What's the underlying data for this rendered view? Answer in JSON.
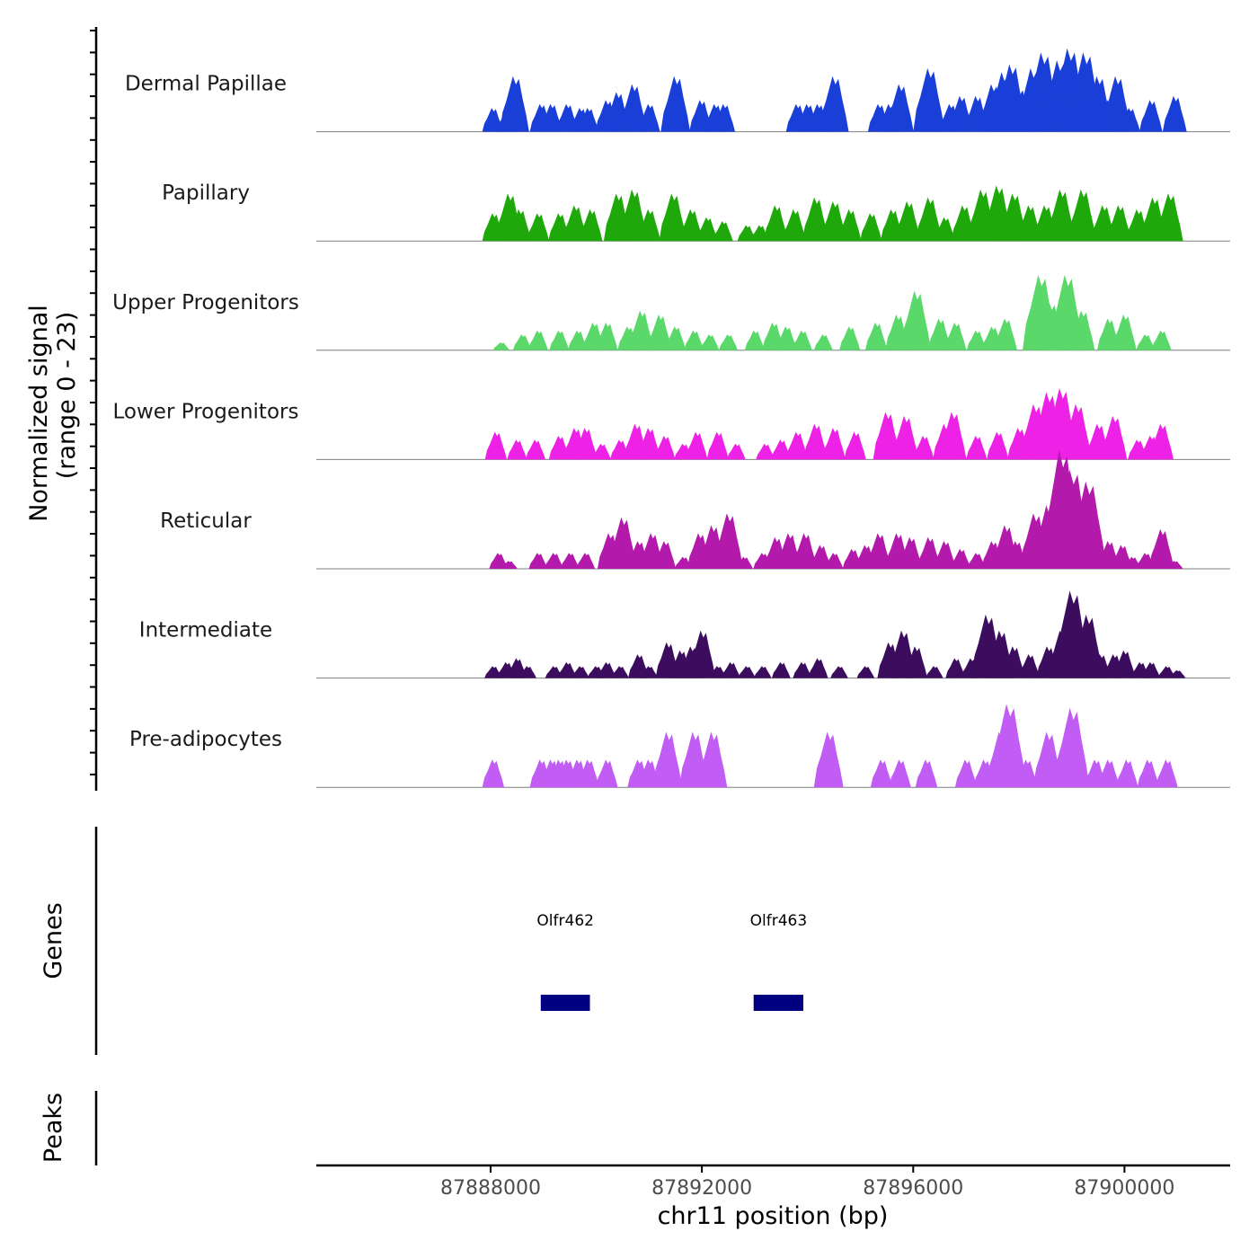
{
  "chart_data": {
    "type": "area",
    "title": "",
    "chromosome": "chr11",
    "xlabel": "chr11 position (bp)",
    "ylabel": "Normalized signal",
    "ylabel_range": "(range 0 - 23)",
    "xlim": [
      87884700,
      87902000
    ],
    "ylim": [
      0,
      23
    ],
    "x_ticks": [
      87888000,
      87892000,
      87896000,
      87900000
    ],
    "x_tick_labels": [
      "87888000",
      "87892000",
      "87896000",
      "87900000"
    ],
    "panels": {
      "genes_label": "Genes",
      "peaks_label": "Peaks"
    },
    "series": [
      {
        "name": "Dermal Papillae",
        "color": "#1a3fd9",
        "peaks": [
          [
            87888040,
            6
          ],
          [
            87888320,
            6
          ],
          [
            87888450,
            14
          ],
          [
            87888950,
            7
          ],
          [
            87889150,
            7
          ],
          [
            87889450,
            7
          ],
          [
            87889700,
            6
          ],
          [
            87889850,
            6
          ],
          [
            87890200,
            8
          ],
          [
            87890400,
            10
          ],
          [
            87890700,
            12
          ],
          [
            87891000,
            7
          ],
          [
            87891500,
            14
          ],
          [
            87891980,
            8
          ],
          [
            87892250,
            7
          ],
          [
            87892420,
            7
          ],
          [
            87893800,
            7
          ],
          [
            87894000,
            7
          ],
          [
            87894200,
            7
          ],
          [
            87894400,
            6
          ],
          [
            87894500,
            14
          ],
          [
            87895350,
            7
          ],
          [
            87895550,
            7
          ],
          [
            87895750,
            12
          ],
          [
            87896300,
            16
          ],
          [
            87896700,
            7
          ],
          [
            87896900,
            9
          ],
          [
            87896350,
            10
          ],
          [
            87897200,
            9
          ],
          [
            87897500,
            12
          ],
          [
            87897700,
            15
          ],
          [
            87897850,
            17
          ],
          [
            87898000,
            11
          ],
          [
            87898250,
            16
          ],
          [
            87898450,
            20
          ],
          [
            87898750,
            18
          ],
          [
            87898950,
            21
          ],
          [
            87899250,
            20
          ],
          [
            87899500,
            14
          ],
          [
            87899700,
            8
          ],
          [
            87899850,
            14
          ],
          [
            87900100,
            6
          ],
          [
            87900500,
            8
          ],
          [
            87900950,
            9
          ]
        ]
      },
      {
        "name": "Papillary",
        "color": "#1fa80a",
        "peaks": [
          [
            87888050,
            7
          ],
          [
            87888350,
            12
          ],
          [
            87888550,
            8
          ],
          [
            87888900,
            7
          ],
          [
            87889300,
            7
          ],
          [
            87889600,
            9
          ],
          [
            87889900,
            8
          ],
          [
            87890400,
            12
          ],
          [
            87890700,
            13
          ],
          [
            87891000,
            8
          ],
          [
            87891450,
            12
          ],
          [
            87891800,
            8
          ],
          [
            87892100,
            6
          ],
          [
            87892400,
            5
          ],
          [
            87892850,
            4
          ],
          [
            87893100,
            4
          ],
          [
            87893400,
            9
          ],
          [
            87893750,
            8
          ],
          [
            87894150,
            11
          ],
          [
            87894500,
            10
          ],
          [
            87894800,
            8
          ],
          [
            87895200,
            7
          ],
          [
            87895600,
            8
          ],
          [
            87895900,
            10
          ],
          [
            87896300,
            11
          ],
          [
            87896600,
            6
          ],
          [
            87896950,
            9
          ],
          [
            87897300,
            13
          ],
          [
            87897600,
            14
          ],
          [
            87897900,
            12
          ],
          [
            87898200,
            9
          ],
          [
            87898500,
            9
          ],
          [
            87898800,
            13
          ],
          [
            87899200,
            13
          ],
          [
            87899600,
            9
          ],
          [
            87899900,
            9
          ],
          [
            87900250,
            8
          ],
          [
            87900550,
            11
          ],
          [
            87900850,
            12
          ]
        ]
      },
      {
        "name": "Upper Progenitors",
        "color": "#5ad96a",
        "peaks": [
          [
            87888200,
            2
          ],
          [
            87888600,
            4
          ],
          [
            87888900,
            5
          ],
          [
            87889300,
            5
          ],
          [
            87889650,
            5
          ],
          [
            87889950,
            7
          ],
          [
            87890200,
            7
          ],
          [
            87890600,
            6
          ],
          [
            87890850,
            10
          ],
          [
            87891200,
            9
          ],
          [
            87891500,
            6
          ],
          [
            87891850,
            5
          ],
          [
            87892150,
            4
          ],
          [
            87892500,
            4
          ],
          [
            87893000,
            5
          ],
          [
            87893350,
            7
          ],
          [
            87893600,
            6
          ],
          [
            87893900,
            5
          ],
          [
            87894300,
            4
          ],
          [
            87894800,
            6
          ],
          [
            87895300,
            7
          ],
          [
            87895700,
            9
          ],
          [
            87896050,
            15
          ],
          [
            87896500,
            8
          ],
          [
            87896800,
            7
          ],
          [
            87897200,
            5
          ],
          [
            87897500,
            6
          ],
          [
            87897750,
            8
          ],
          [
            87898400,
            19
          ],
          [
            87898600,
            12
          ],
          [
            87898900,
            19
          ],
          [
            87899200,
            10
          ],
          [
            87899700,
            8
          ],
          [
            87900000,
            9
          ],
          [
            87900400,
            4
          ],
          [
            87900700,
            5
          ]
        ]
      },
      {
        "name": "Lower Progenitors",
        "color": "#ee22e6",
        "peaks": [
          [
            87888100,
            7
          ],
          [
            87888500,
            5
          ],
          [
            87888850,
            5
          ],
          [
            87889300,
            6
          ],
          [
            87889600,
            8
          ],
          [
            87889800,
            8
          ],
          [
            87890100,
            4
          ],
          [
            87890450,
            5
          ],
          [
            87890750,
            9
          ],
          [
            87891000,
            8
          ],
          [
            87891300,
            6
          ],
          [
            87891650,
            4
          ],
          [
            87891900,
            7
          ],
          [
            87892300,
            7
          ],
          [
            87892650,
            4
          ],
          [
            87893200,
            4
          ],
          [
            87893500,
            5
          ],
          [
            87893800,
            7
          ],
          [
            87894150,
            9
          ],
          [
            87894500,
            8
          ],
          [
            87894900,
            7
          ],
          [
            87895500,
            12
          ],
          [
            87895850,
            11
          ],
          [
            87896200,
            6
          ],
          [
            87896600,
            9
          ],
          [
            87896750,
            12
          ],
          [
            87897200,
            6
          ],
          [
            87897600,
            7
          ],
          [
            87898000,
            8
          ],
          [
            87898300,
            14
          ],
          [
            87898550,
            17
          ],
          [
            87898800,
            18
          ],
          [
            87899100,
            14
          ],
          [
            87899500,
            9
          ],
          [
            87899800,
            11
          ],
          [
            87900250,
            5
          ],
          [
            87900500,
            6
          ],
          [
            87900700,
            9
          ]
        ]
      },
      {
        "name": "Reticular",
        "color": "#b319ab",
        "peaks": [
          [
            87888150,
            4
          ],
          [
            87888350,
            2
          ],
          [
            87888900,
            4
          ],
          [
            87889200,
            4
          ],
          [
            87889500,
            4
          ],
          [
            87889800,
            4
          ],
          [
            87890250,
            9
          ],
          [
            87890500,
            13
          ],
          [
            87890800,
            7
          ],
          [
            87891050,
            9
          ],
          [
            87891300,
            7
          ],
          [
            87891650,
            3
          ],
          [
            87891950,
            9
          ],
          [
            87892200,
            11
          ],
          [
            87892500,
            14
          ],
          [
            87892800,
            3
          ],
          [
            87893150,
            4
          ],
          [
            87893400,
            8
          ],
          [
            87893650,
            9
          ],
          [
            87893950,
            9
          ],
          [
            87894250,
            6
          ],
          [
            87894500,
            4
          ],
          [
            87894850,
            5
          ],
          [
            87895100,
            6
          ],
          [
            87895350,
            9
          ],
          [
            87895700,
            9
          ],
          [
            87895950,
            8
          ],
          [
            87896300,
            8
          ],
          [
            87896600,
            7
          ],
          [
            87896900,
            5
          ],
          [
            87897200,
            4
          ],
          [
            87897500,
            7
          ],
          [
            87897750,
            11
          ],
          [
            87897950,
            7
          ],
          [
            87898300,
            14
          ],
          [
            87898550,
            16
          ],
          [
            87898800,
            30
          ],
          [
            87899000,
            25
          ],
          [
            87899300,
            22
          ],
          [
            87899700,
            7
          ],
          [
            87899950,
            6
          ],
          [
            87900150,
            3
          ],
          [
            87900400,
            4
          ],
          [
            87900700,
            10
          ],
          [
            87900950,
            2
          ]
        ]
      },
      {
        "name": "Intermediate",
        "color": "#3c0d5e",
        "peaks": [
          [
            87888050,
            3
          ],
          [
            87888300,
            4
          ],
          [
            87888500,
            5
          ],
          [
            87888700,
            3
          ],
          [
            87889200,
            3
          ],
          [
            87889450,
            4
          ],
          [
            87889700,
            3
          ],
          [
            87890000,
            3
          ],
          [
            87890200,
            4
          ],
          [
            87890450,
            3
          ],
          [
            87890800,
            6
          ],
          [
            87891000,
            3
          ],
          [
            87891350,
            9
          ],
          [
            87891600,
            7
          ],
          [
            87891800,
            8
          ],
          [
            87892000,
            12
          ],
          [
            87892300,
            3
          ],
          [
            87892550,
            4
          ],
          [
            87892850,
            3
          ],
          [
            87893150,
            3
          ],
          [
            87893500,
            4
          ],
          [
            87893900,
            4
          ],
          [
            87894200,
            5
          ],
          [
            87894600,
            3
          ],
          [
            87895100,
            3
          ],
          [
            87895550,
            9
          ],
          [
            87895800,
            12
          ],
          [
            87896050,
            8
          ],
          [
            87896400,
            3
          ],
          [
            87896800,
            5
          ],
          [
            87897100,
            5
          ],
          [
            87897400,
            16
          ],
          [
            87897650,
            12
          ],
          [
            87897900,
            8
          ],
          [
            87898200,
            6
          ],
          [
            87898550,
            8
          ],
          [
            87898800,
            12
          ],
          [
            87899000,
            22
          ],
          [
            87899300,
            16
          ],
          [
            87899550,
            6
          ],
          [
            87899800,
            6
          ],
          [
            87900000,
            7
          ],
          [
            87900300,
            4
          ],
          [
            87900500,
            4
          ],
          [
            87900800,
            3
          ],
          [
            87901000,
            2
          ]
        ]
      },
      {
        "name": "Pre-adipocytes",
        "color": "#c15cf5",
        "peaks": [
          [
            87888050,
            7
          ],
          [
            87888950,
            7
          ],
          [
            87889150,
            7
          ],
          [
            87889300,
            7
          ],
          [
            87889450,
            7
          ],
          [
            87889650,
            7
          ],
          [
            87889850,
            7
          ],
          [
            87890200,
            7
          ],
          [
            87890800,
            7
          ],
          [
            87891000,
            7
          ],
          [
            87891350,
            14
          ],
          [
            87891850,
            14
          ],
          [
            87892200,
            14
          ],
          [
            87894400,
            14
          ],
          [
            87895400,
            7
          ],
          [
            87895750,
            7
          ],
          [
            87896250,
            7
          ],
          [
            87897000,
            7
          ],
          [
            87897350,
            7
          ],
          [
            87897650,
            14
          ],
          [
            87897800,
            21
          ],
          [
            87898150,
            7
          ],
          [
            87898550,
            14
          ],
          [
            87899000,
            20
          ],
          [
            87899450,
            7
          ],
          [
            87899700,
            7
          ],
          [
            87900050,
            7
          ],
          [
            87900450,
            7
          ],
          [
            87900800,
            7
          ]
        ]
      }
    ],
    "genes": [
      {
        "name": "Olfr462",
        "start": 87888950,
        "end": 87889880
      },
      {
        "name": "Olfr463",
        "start": 87892980,
        "end": 87893920
      }
    ],
    "peak_regions": []
  }
}
